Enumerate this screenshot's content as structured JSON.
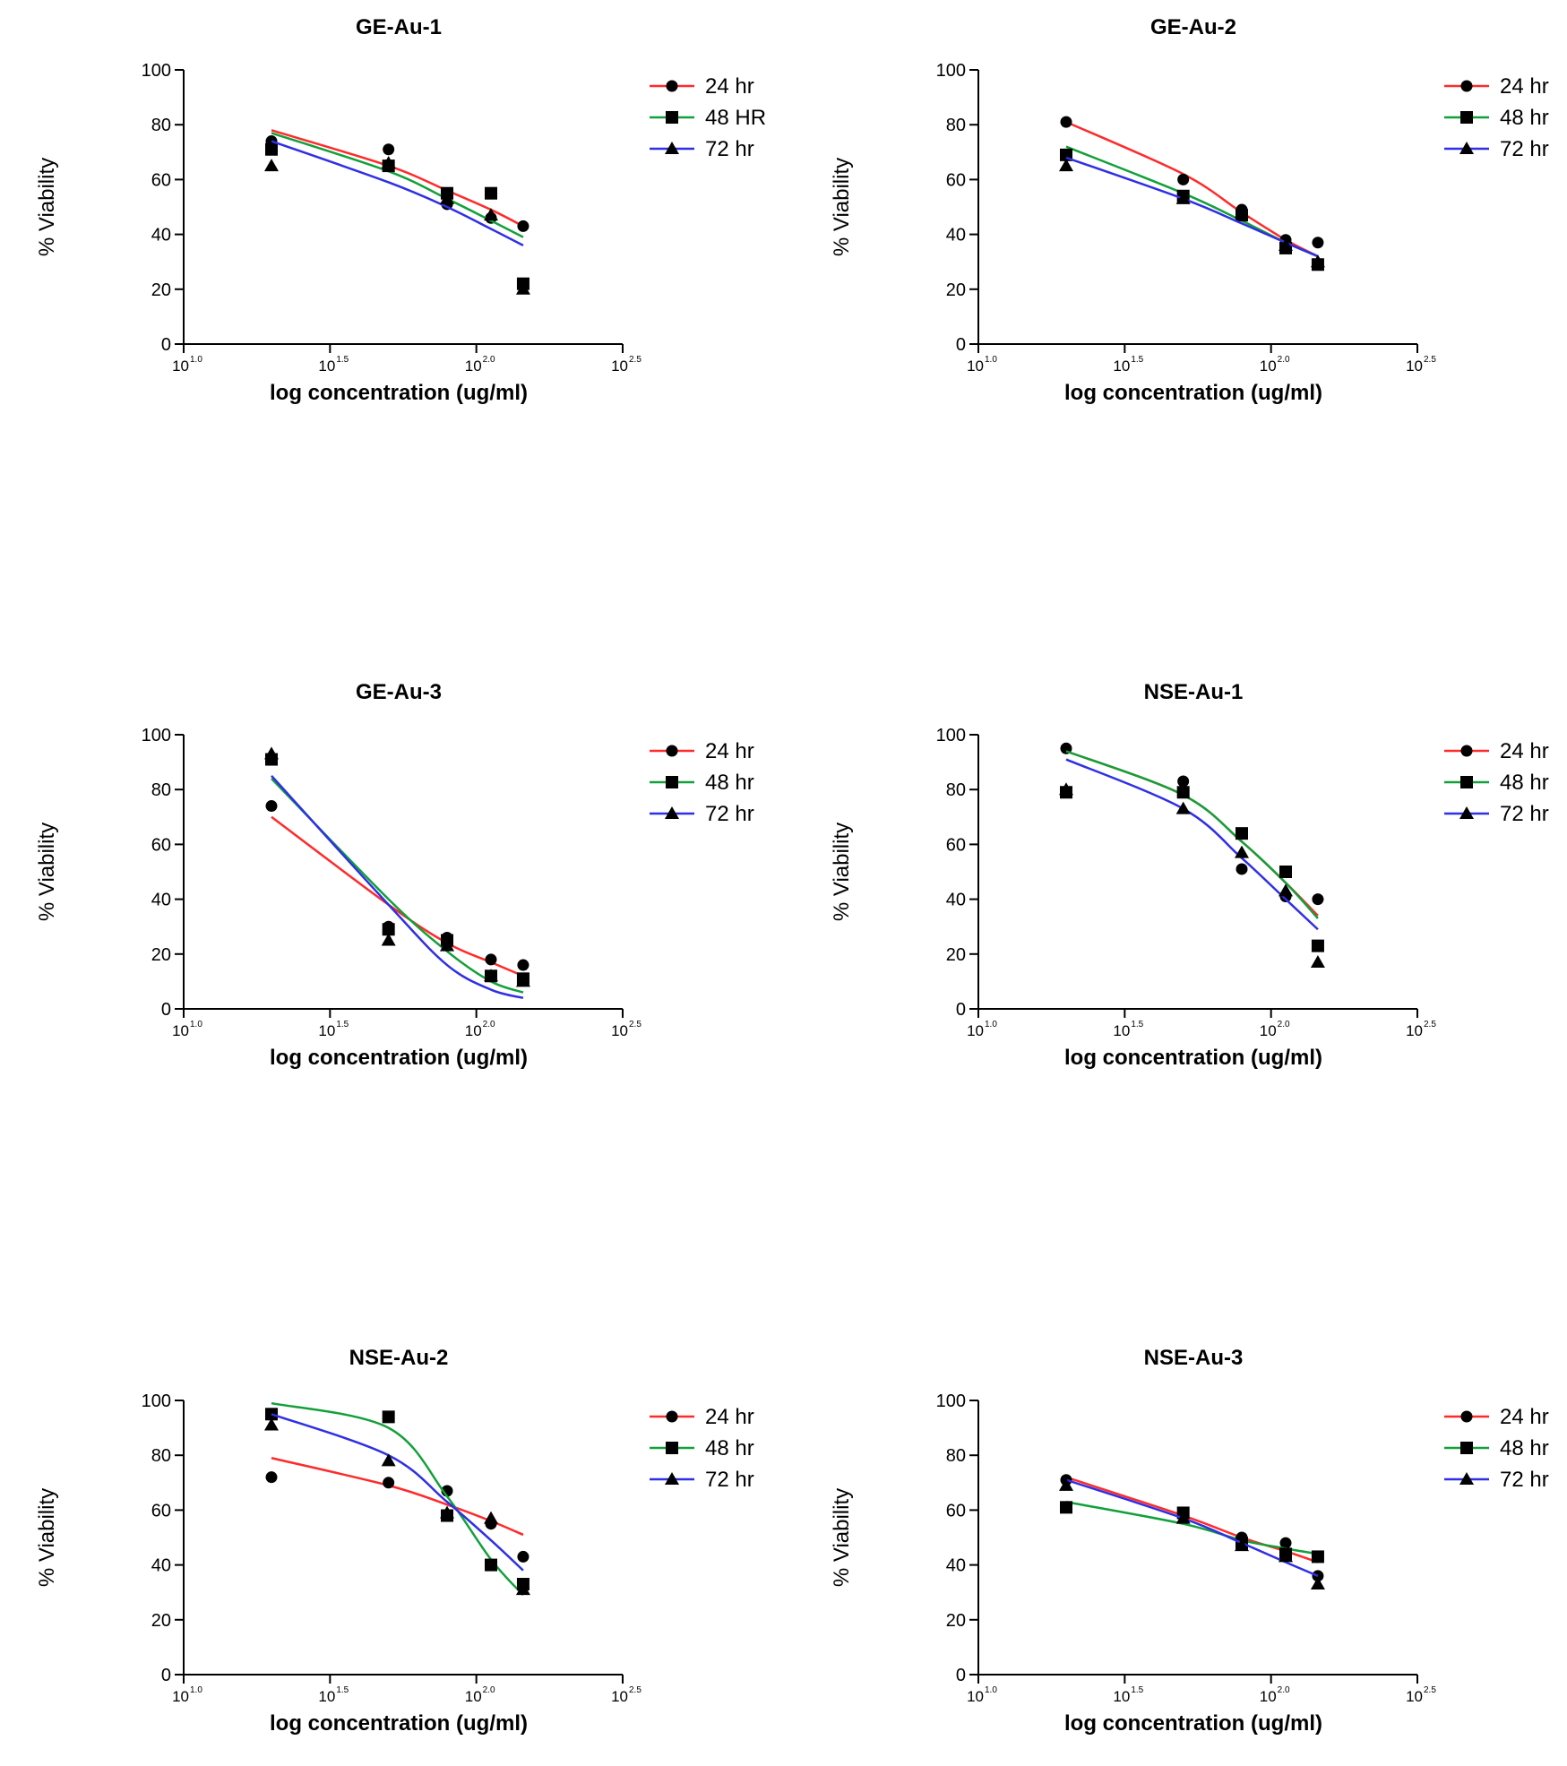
{
  "figure": {
    "colors": {
      "s24": "#ff2a2a",
      "s48": "#12a03a",
      "s72": "#2f2fe6",
      "axis": "#000000"
    }
  },
  "chart_data": [
    {
      "type": "scatter",
      "title": "GE-Au-1",
      "xlabel": "log concentration (ug/ml)",
      "ylabel": "% Viability",
      "xscale": "log10",
      "xlim_exponent": [
        1.0,
        2.5
      ],
      "x_ticks": [
        {
          "base": "10",
          "exp": "1.0"
        },
        {
          "base": "10",
          "exp": "1.5"
        },
        {
          "base": "10",
          "exp": "2.0"
        },
        {
          "base": "10",
          "exp": "2.5"
        }
      ],
      "y_ticks": [
        "0",
        "20",
        "40",
        "60",
        "80",
        "100"
      ],
      "ylim": [
        0,
        100
      ],
      "x_log": [
        1.3,
        1.7,
        1.9,
        2.05,
        2.16
      ],
      "series": [
        {
          "name": "24 hr",
          "marker": "circle",
          "values": [
            74,
            71,
            51,
            46,
            43
          ],
          "fit": [
            78,
            65,
            56,
            49,
            43
          ]
        },
        {
          "name": "48 HR",
          "marker": "square",
          "values": [
            71,
            65,
            55,
            55,
            22
          ],
          "fit": [
            77,
            63,
            53,
            45,
            39
          ]
        },
        {
          "name": "72 hr",
          "marker": "triangle",
          "values": [
            65,
            66,
            53,
            47,
            20
          ],
          "fit": [
            74,
            59,
            50,
            42,
            36
          ]
        }
      ]
    },
    {
      "type": "scatter",
      "title": "GE-Au-2",
      "xlabel": "log concentration (ug/ml)",
      "ylabel": "% Viability",
      "xscale": "log10",
      "xlim_exponent": [
        1.0,
        2.5
      ],
      "x_ticks": [
        {
          "base": "10",
          "exp": "1.0"
        },
        {
          "base": "10",
          "exp": "1.5"
        },
        {
          "base": "10",
          "exp": "2.0"
        },
        {
          "base": "10",
          "exp": "2.5"
        }
      ],
      "y_ticks": [
        "0",
        "20",
        "40",
        "60",
        "80",
        "100"
      ],
      "ylim": [
        0,
        100
      ],
      "x_log": [
        1.3,
        1.7,
        1.9,
        2.05,
        2.16
      ],
      "series": [
        {
          "name": "24 hr",
          "marker": "circle",
          "values": [
            81,
            60,
            49,
            38,
            37
          ],
          "fit": [
            81,
            62,
            48,
            38,
            32
          ]
        },
        {
          "name": "48 hr",
          "marker": "square",
          "values": [
            69,
            54,
            47,
            35,
            29
          ],
          "fit": [
            72,
            55,
            45,
            37,
            32
          ]
        },
        {
          "name": "72 hr",
          "marker": "triangle",
          "values": [
            65,
            53,
            48,
            36,
            30
          ],
          "fit": [
            68,
            53,
            44,
            37,
            32
          ]
        }
      ]
    },
    {
      "type": "scatter",
      "title": "GE-Au-3",
      "xlabel": "log concentration (ug/ml)",
      "ylabel": "% Viability",
      "xscale": "log10",
      "xlim_exponent": [
        1.0,
        2.5
      ],
      "x_ticks": [
        {
          "base": "10",
          "exp": "1.0"
        },
        {
          "base": "10",
          "exp": "1.5"
        },
        {
          "base": "10",
          "exp": "2.0"
        },
        {
          "base": "10",
          "exp": "2.5"
        }
      ],
      "y_ticks": [
        "0",
        "20",
        "40",
        "60",
        "80",
        "100"
      ],
      "ylim": [
        0,
        100
      ],
      "x_log": [
        1.3,
        1.7,
        1.9,
        2.05,
        2.16
      ],
      "series": [
        {
          "name": "24 hr",
          "marker": "circle",
          "values": [
            74,
            30,
            26,
            18,
            16
          ],
          "fit": [
            70,
            38,
            24,
            17,
            12
          ]
        },
        {
          "name": "48 hr",
          "marker": "square",
          "values": [
            91,
            29,
            25,
            12,
            11
          ],
          "fit": [
            84,
            40,
            21,
            10,
            6
          ]
        },
        {
          "name": "72 hr",
          "marker": "triangle",
          "values": [
            93,
            25,
            23,
            12,
            10
          ],
          "fit": [
            85,
            38,
            16,
            7,
            4
          ]
        }
      ]
    },
    {
      "type": "scatter",
      "title": "NSE-Au-1",
      "xlabel": "log concentration (ug/ml)",
      "ylabel": "% Viability",
      "xscale": "log10",
      "xlim_exponent": [
        1.0,
        2.5
      ],
      "x_ticks": [
        {
          "base": "10",
          "exp": "1.0"
        },
        {
          "base": "10",
          "exp": "1.5"
        },
        {
          "base": "10",
          "exp": "2.0"
        },
        {
          "base": "10",
          "exp": "2.5"
        }
      ],
      "y_ticks": [
        "0",
        "20",
        "40",
        "60",
        "80",
        "100"
      ],
      "ylim": [
        0,
        100
      ],
      "x_log": [
        1.3,
        1.7,
        1.9,
        2.05,
        2.16
      ],
      "series": [
        {
          "name": "24 hr",
          "marker": "circle",
          "values": [
            95,
            83,
            51,
            41,
            40
          ],
          "fit": [
            94,
            78,
            61,
            46,
            34
          ]
        },
        {
          "name": "48 hr",
          "marker": "square",
          "values": [
            79,
            79,
            64,
            50,
            23
          ],
          "fit": [
            94,
            78,
            61,
            46,
            33
          ]
        },
        {
          "name": "72 hr",
          "marker": "triangle",
          "values": [
            80,
            73,
            57,
            43,
            17
          ],
          "fit": [
            91,
            73,
            55,
            40,
            29
          ]
        }
      ]
    },
    {
      "type": "scatter",
      "title": "NSE-Au-2",
      "xlabel": "log concentration (ug/ml)",
      "ylabel": "% Viability",
      "xscale": "log10",
      "xlim_exponent": [
        1.0,
        2.5
      ],
      "x_ticks": [
        {
          "base": "10",
          "exp": "1.0"
        },
        {
          "base": "10",
          "exp": "1.5"
        },
        {
          "base": "10",
          "exp": "2.0"
        },
        {
          "base": "10",
          "exp": "2.5"
        }
      ],
      "y_ticks": [
        "0",
        "20",
        "40",
        "60",
        "80",
        "100"
      ],
      "ylim": [
        0,
        100
      ],
      "x_log": [
        1.3,
        1.7,
        1.9,
        2.05,
        2.16
      ],
      "series": [
        {
          "name": "24 hr",
          "marker": "circle",
          "values": [
            72,
            70,
            67,
            55,
            43
          ],
          "fit": [
            79,
            69,
            62,
            56,
            51
          ]
        },
        {
          "name": "48 hr",
          "marker": "square",
          "values": [
            95,
            94,
            58,
            40,
            33
          ],
          "fit": [
            99,
            90,
            65,
            42,
            29
          ]
        },
        {
          "name": "72 hr",
          "marker": "triangle",
          "values": [
            91,
            78,
            59,
            57,
            31
          ],
          "fit": [
            95,
            80,
            63,
            49,
            38
          ]
        }
      ]
    },
    {
      "type": "scatter",
      "title": "NSE-Au-3",
      "xlabel": "log concentration (ug/ml)",
      "ylabel": "% Viability",
      "xscale": "log10",
      "xlim_exponent": [
        1.0,
        2.5
      ],
      "x_ticks": [
        {
          "base": "10",
          "exp": "1.0"
        },
        {
          "base": "10",
          "exp": "1.5"
        },
        {
          "base": "10",
          "exp": "2.0"
        },
        {
          "base": "10",
          "exp": "2.5"
        }
      ],
      "y_ticks": [
        "0",
        "20",
        "40",
        "60",
        "80",
        "100"
      ],
      "ylim": [
        0,
        100
      ],
      "x_log": [
        1.3,
        1.7,
        1.9,
        2.05,
        2.16
      ],
      "series": [
        {
          "name": "24 hr",
          "marker": "circle",
          "values": [
            71,
            58,
            50,
            48,
            36
          ],
          "fit": [
            72,
            58,
            50,
            45,
            41
          ]
        },
        {
          "name": "48 hr",
          "marker": "square",
          "values": [
            61,
            59,
            48,
            44,
            43
          ],
          "fit": [
            63,
            55,
            49,
            46,
            44
          ]
        },
        {
          "name": "72 hr",
          "marker": "triangle",
          "values": [
            69,
            57,
            47,
            43,
            33
          ],
          "fit": [
            71,
            57,
            48,
            41,
            36
          ]
        }
      ]
    }
  ]
}
